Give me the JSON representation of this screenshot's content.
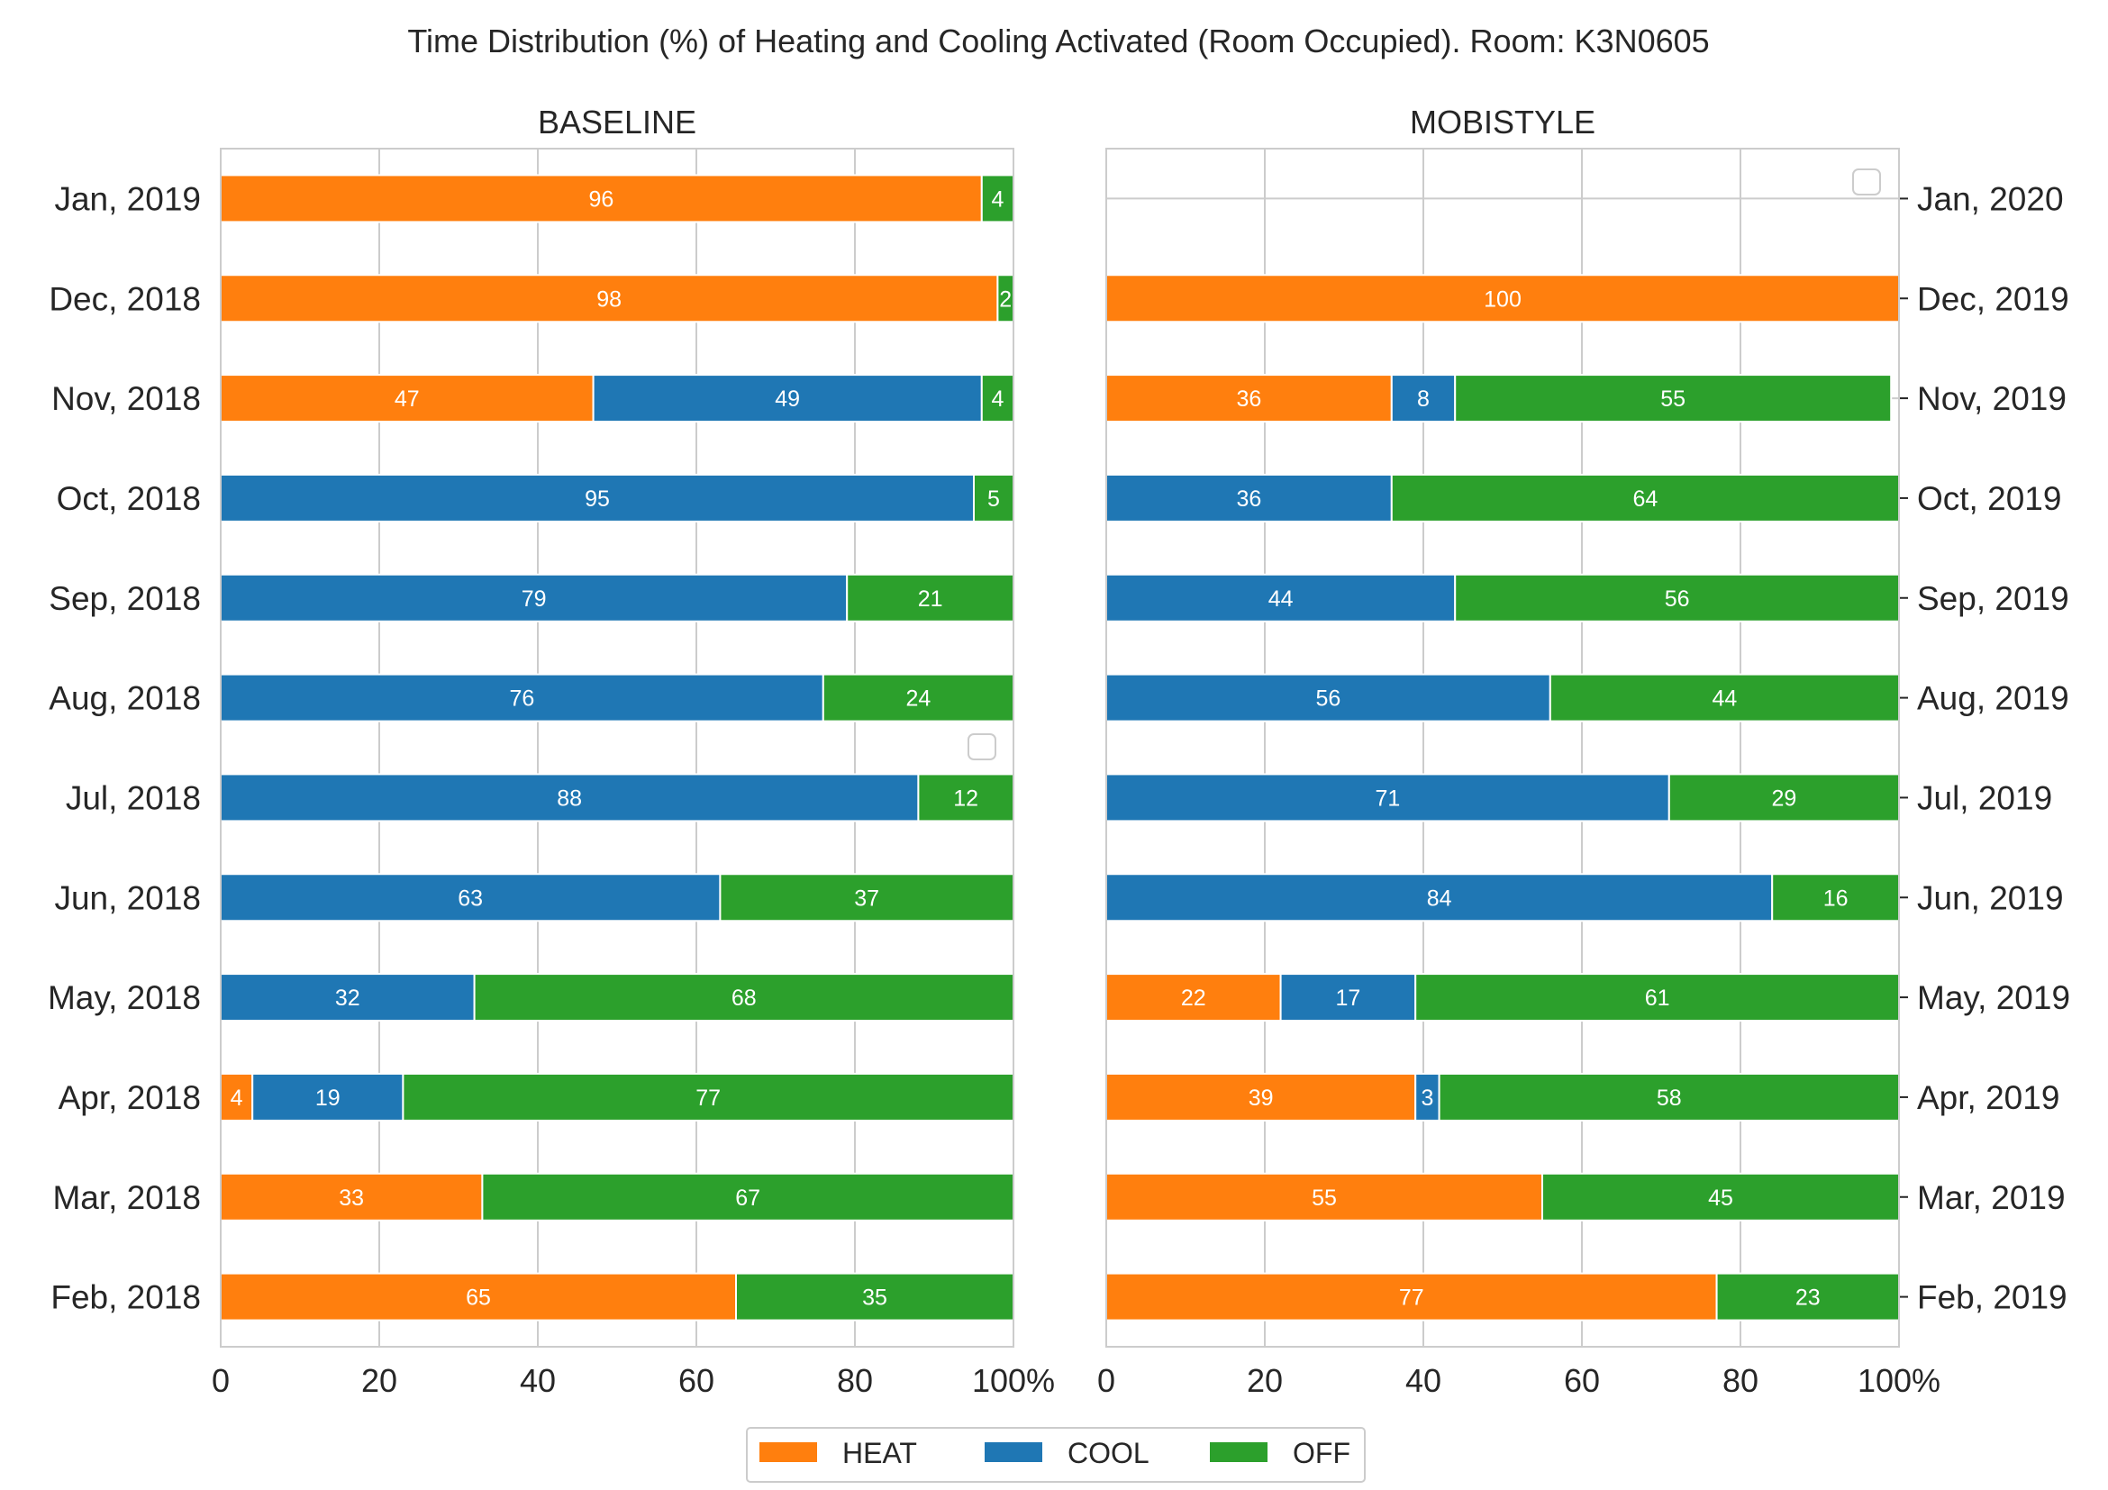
{
  "figure": {
    "title": "Time Distribution (%) of Heating and Cooling Activated (Room Occupied). Room: K3N0605",
    "legend": [
      {
        "key": "heat",
        "label": "HEAT",
        "color": "#ff7f0e"
      },
      {
        "key": "cool",
        "label": "COOL",
        "color": "#1f77b4"
      },
      {
        "key": "off",
        "label": "OFF",
        "color": "#2ca02c"
      }
    ]
  },
  "chart_data": [
    {
      "type": "bar",
      "orientation": "horizontal",
      "stacked": true,
      "title": "BASELINE",
      "xlim": [
        0,
        100
      ],
      "xticks": [
        "0",
        "20",
        "40",
        "60",
        "80",
        "100%"
      ],
      "grid": true,
      "categories": [
        "Jan, 2019",
        "Dec, 2018",
        "Nov, 2018",
        "Oct, 2018",
        "Sep, 2018",
        "Aug, 2018",
        "Jul, 2018",
        "Jun, 2018",
        "May, 2018",
        "Apr, 2018",
        "Mar, 2018",
        "Feb, 2018"
      ],
      "series": [
        {
          "name": "HEAT",
          "color": "#ff7f0e",
          "values": [
            96,
            98,
            47,
            0,
            0,
            0,
            0,
            0,
            0,
            4,
            33,
            65
          ]
        },
        {
          "name": "COOL",
          "color": "#1f77b4",
          "values": [
            0,
            0,
            49,
            95,
            79,
            76,
            88,
            63,
            32,
            19,
            0,
            0
          ]
        },
        {
          "name": "OFF",
          "color": "#2ca02c",
          "values": [
            4,
            2,
            4,
            5,
            21,
            24,
            12,
            37,
            68,
            77,
            67,
            35
          ]
        }
      ]
    },
    {
      "type": "bar",
      "orientation": "horizontal",
      "stacked": true,
      "title": "MOBISTYLE",
      "xlim": [
        0,
        100
      ],
      "xticks": [
        "0",
        "20",
        "40",
        "60",
        "80",
        "100%"
      ],
      "grid": true,
      "categories": [
        "Jan, 2020",
        "Dec, 2019",
        "Nov, 2019",
        "Oct, 2019",
        "Sep, 2019",
        "Aug, 2019",
        "Jul, 2019",
        "Jun, 2019",
        "May, 2019",
        "Apr, 2019",
        "Mar, 2019",
        "Feb, 2019"
      ],
      "series": [
        {
          "name": "HEAT",
          "color": "#ff7f0e",
          "values": [
            0,
            100,
            36,
            0,
            0,
            0,
            0,
            0,
            22,
            39,
            55,
            77
          ]
        },
        {
          "name": "COOL",
          "color": "#1f77b4",
          "values": [
            0,
            0,
            8,
            36,
            44,
            56,
            71,
            84,
            17,
            3,
            0,
            0
          ]
        },
        {
          "name": "OFF",
          "color": "#2ca02c",
          "values": [
            0,
            0,
            55,
            64,
            56,
            44,
            29,
            16,
            61,
            58,
            45,
            23
          ]
        }
      ]
    }
  ]
}
